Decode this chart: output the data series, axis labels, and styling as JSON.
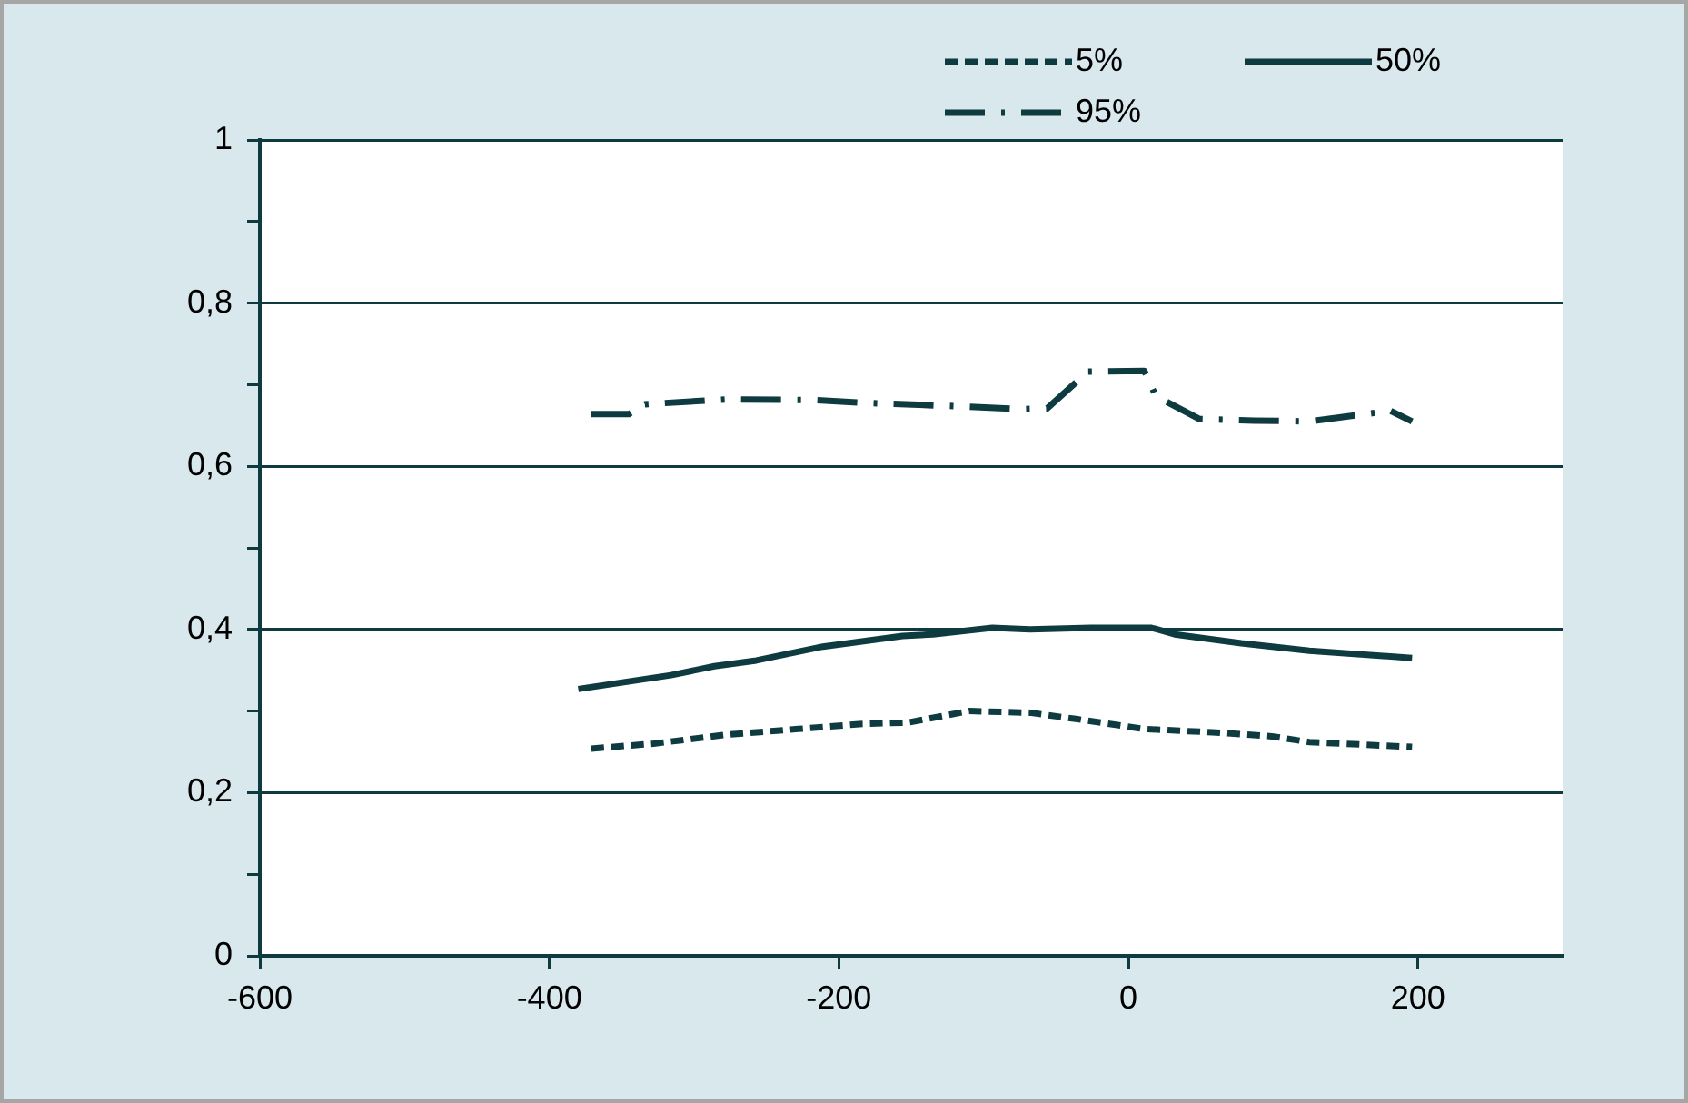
{
  "chart_data": {
    "type": "line",
    "xlim": [
      -600,
      300
    ],
    "xticks": [
      -600,
      -400,
      -200,
      0,
      200
    ],
    "ylim": [
      0,
      1
    ],
    "yticks": [
      0,
      {
        "value": 0.1,
        "label": null
      },
      {
        "value": 0.2,
        "label": "0,2"
      },
      {
        "value": 0.3,
        "label": null
      },
      {
        "value": 0.4,
        "label": "0,4"
      },
      {
        "value": 0.5,
        "label": null
      },
      {
        "value": 0.6,
        "label": "0,6"
      },
      {
        "value": 0.7,
        "label": null
      },
      {
        "value": 0.8,
        "label": "0,8"
      },
      {
        "value": 0.9,
        "label": null
      },
      1
    ],
    "grid": "y",
    "legend": "top right",
    "marker": "none",
    "series": [
      {
        "name": "5%",
        "color": "#0d3b40",
        "line_style": "dashed",
        "x": [
          -371,
          -328,
          -278,
          -228,
          -186,
          -152,
          -110,
          -68,
          -35,
          11,
          58,
          99,
          125,
          196
        ],
        "values": [
          0.254,
          0.26,
          0.271,
          0.278,
          0.284,
          0.286,
          0.3,
          0.298,
          0.29,
          0.278,
          0.274,
          0.269,
          0.262,
          0.256
        ]
      },
      {
        "name": "50%",
        "color": "#0d3b40",
        "line_style": "solid",
        "x": [
          -380,
          -316,
          -286,
          -257,
          -211,
          -156,
          -135,
          -94,
          -68,
          -26,
          16,
          32,
          78,
          125,
          196
        ],
        "values": [
          0.327,
          0.344,
          0.355,
          0.362,
          0.379,
          0.392,
          0.394,
          0.402,
          0.4,
          0.402,
          0.402,
          0.394,
          0.383,
          0.374,
          0.365
        ]
      },
      {
        "name": "95%",
        "color": "#0d3b40",
        "line_style": "dashdot",
        "x": [
          -371,
          -345,
          -334,
          -278,
          -215,
          -186,
          -110,
          -73,
          -56,
          -28,
          11,
          19,
          49,
          87,
          125,
          181,
          196
        ],
        "values": [
          0.664,
          0.664,
          0.676,
          0.682,
          0.681,
          0.678,
          0.673,
          0.67,
          0.671,
          0.716,
          0.717,
          0.686,
          0.658,
          0.656,
          0.655,
          0.668,
          0.655
        ]
      }
    ]
  }
}
